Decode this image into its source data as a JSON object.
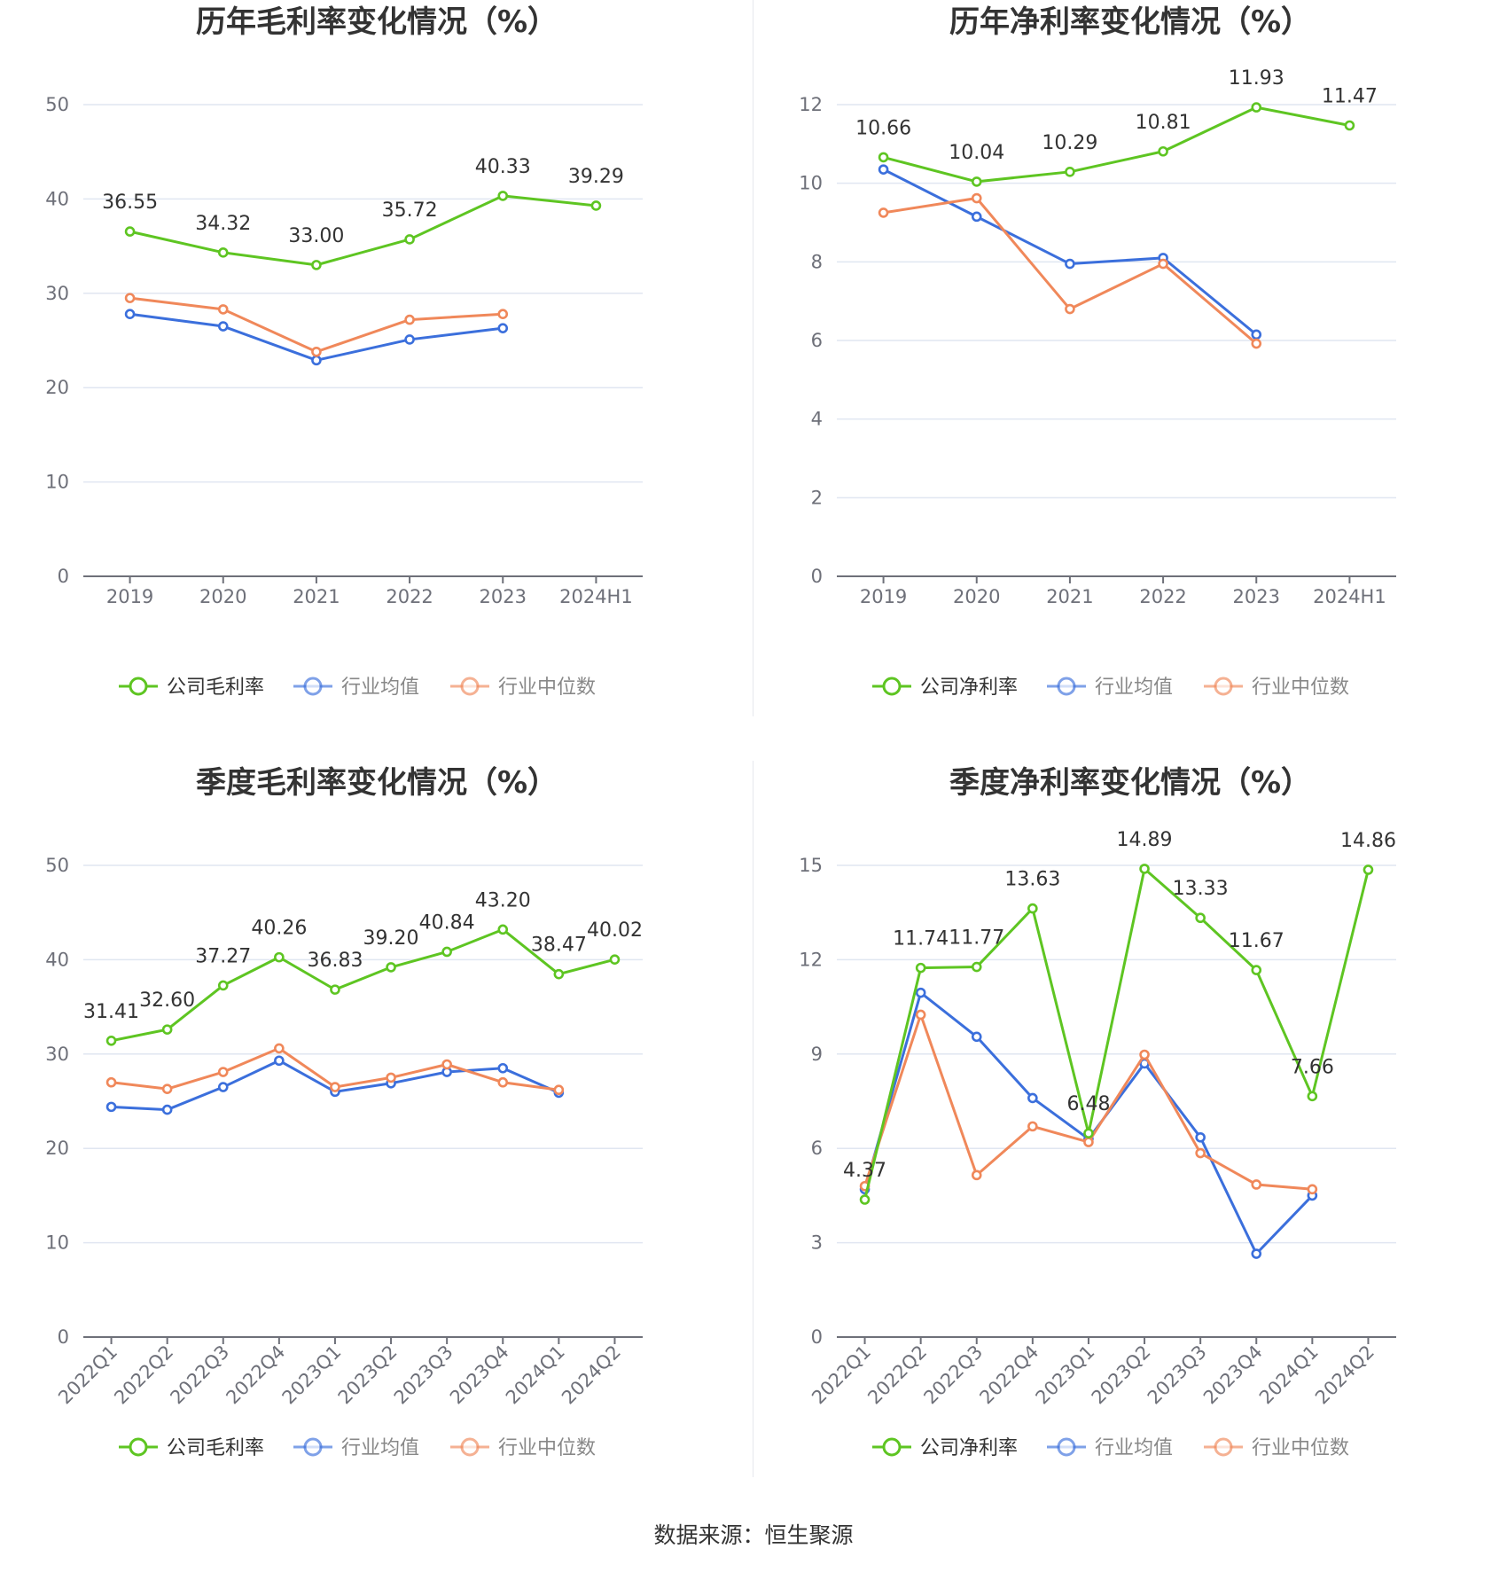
{
  "source": "数据来源：恒生聚源",
  "colors": {
    "company": "#5ec522",
    "avg": "#3b6fdc",
    "median": "#f0885a",
    "grid": "#e0e6f1",
    "axis": "#6e7079"
  },
  "chart_data": [
    {
      "type": "line",
      "title": "历年毛利率变化情况（%）",
      "categories": [
        "2019",
        "2020",
        "2021",
        "2022",
        "2023",
        "2024H1"
      ],
      "ylim": [
        0,
        50
      ],
      "yticks": [
        0,
        10,
        20,
        30,
        40,
        50
      ],
      "xlabel": "",
      "ylabel": "",
      "grid": true,
      "legend_placement": "bottom",
      "series": [
        {
          "name": "公司毛利率",
          "values": [
            36.55,
            34.32,
            33.0,
            35.72,
            40.33,
            39.29
          ],
          "labels": [
            "36.55",
            "34.32",
            "33.00",
            "35.72",
            "40.33",
            "39.29"
          ]
        },
        {
          "name": "行业均值",
          "values": [
            27.8,
            26.5,
            22.9,
            25.1,
            26.3,
            null
          ]
        },
        {
          "name": "行业中位数",
          "values": [
            29.5,
            28.3,
            23.8,
            27.2,
            27.8,
            null
          ]
        }
      ]
    },
    {
      "type": "line",
      "title": "历年净利率变化情况（%）",
      "categories": [
        "2019",
        "2020",
        "2021",
        "2022",
        "2023",
        "2024H1"
      ],
      "ylim": [
        0,
        12
      ],
      "yticks": [
        0,
        2,
        4,
        6,
        8,
        10,
        12
      ],
      "xlabel": "",
      "ylabel": "",
      "grid": true,
      "legend_placement": "bottom",
      "series": [
        {
          "name": "公司净利率",
          "values": [
            10.66,
            10.04,
            10.29,
            10.81,
            11.93,
            11.47
          ],
          "labels": [
            "10.66",
            "10.04",
            "10.29",
            "10.81",
            "11.93",
            "11.47"
          ]
        },
        {
          "name": "行业均值",
          "values": [
            10.35,
            9.15,
            7.95,
            8.1,
            6.15,
            null
          ]
        },
        {
          "name": "行业中位数",
          "values": [
            9.25,
            9.62,
            6.8,
            7.95,
            5.92,
            null
          ]
        }
      ]
    },
    {
      "type": "line",
      "title": "季度毛利率变化情况（%）",
      "categories": [
        "2022Q1",
        "2022Q2",
        "2022Q3",
        "2022Q4",
        "2023Q1",
        "2023Q2",
        "2023Q3",
        "2023Q4",
        "2024Q1",
        "2024Q2"
      ],
      "ylim": [
        0,
        50
      ],
      "yticks": [
        0,
        10,
        20,
        30,
        40,
        50
      ],
      "xlabel": "",
      "ylabel": "",
      "grid": true,
      "legend_placement": "bottom",
      "series": [
        {
          "name": "公司毛利率",
          "values": [
            31.41,
            32.6,
            37.27,
            40.26,
            36.83,
            39.2,
            40.84,
            43.2,
            38.47,
            40.02
          ],
          "labels": [
            "31.41",
            "32.60",
            "37.27",
            "40.26",
            "36.83",
            "39.20",
            "40.84",
            "43.20",
            "38.47",
            "40.02"
          ]
        },
        {
          "name": "行业均值",
          "values": [
            24.4,
            24.1,
            26.5,
            29.3,
            26.0,
            26.9,
            28.1,
            28.5,
            25.9,
            null
          ]
        },
        {
          "name": "行业中位数",
          "values": [
            27.0,
            26.3,
            28.1,
            30.6,
            26.5,
            27.5,
            28.9,
            27.0,
            26.2,
            null
          ]
        }
      ]
    },
    {
      "type": "line",
      "title": "季度净利率变化情况（%）",
      "categories": [
        "2022Q1",
        "2022Q2",
        "2022Q3",
        "2022Q4",
        "2023Q1",
        "2023Q2",
        "2023Q3",
        "2023Q4",
        "2024Q1",
        "2024Q2"
      ],
      "ylim": [
        0,
        15
      ],
      "yticks": [
        0,
        3,
        6,
        9,
        12,
        15
      ],
      "xlabel": "",
      "ylabel": "",
      "grid": true,
      "legend_placement": "bottom",
      "series": [
        {
          "name": "公司净利率",
          "values": [
            4.37,
            11.74,
            11.77,
            13.63,
            6.48,
            14.89,
            13.33,
            11.67,
            7.66,
            14.86
          ],
          "labels": [
            "4.37",
            "11.74",
            "11.77",
            "13.63",
            "6.48",
            "14.89",
            "13.33",
            "11.67",
            "7.66",
            "14.86"
          ]
        },
        {
          "name": "行业均值",
          "values": [
            4.7,
            10.95,
            9.55,
            7.6,
            6.3,
            8.7,
            6.35,
            2.65,
            4.5,
            null
          ]
        },
        {
          "name": "行业中位数",
          "values": [
            4.8,
            10.25,
            5.15,
            6.7,
            6.2,
            8.98,
            5.85,
            4.85,
            4.7,
            null
          ]
        }
      ]
    }
  ]
}
